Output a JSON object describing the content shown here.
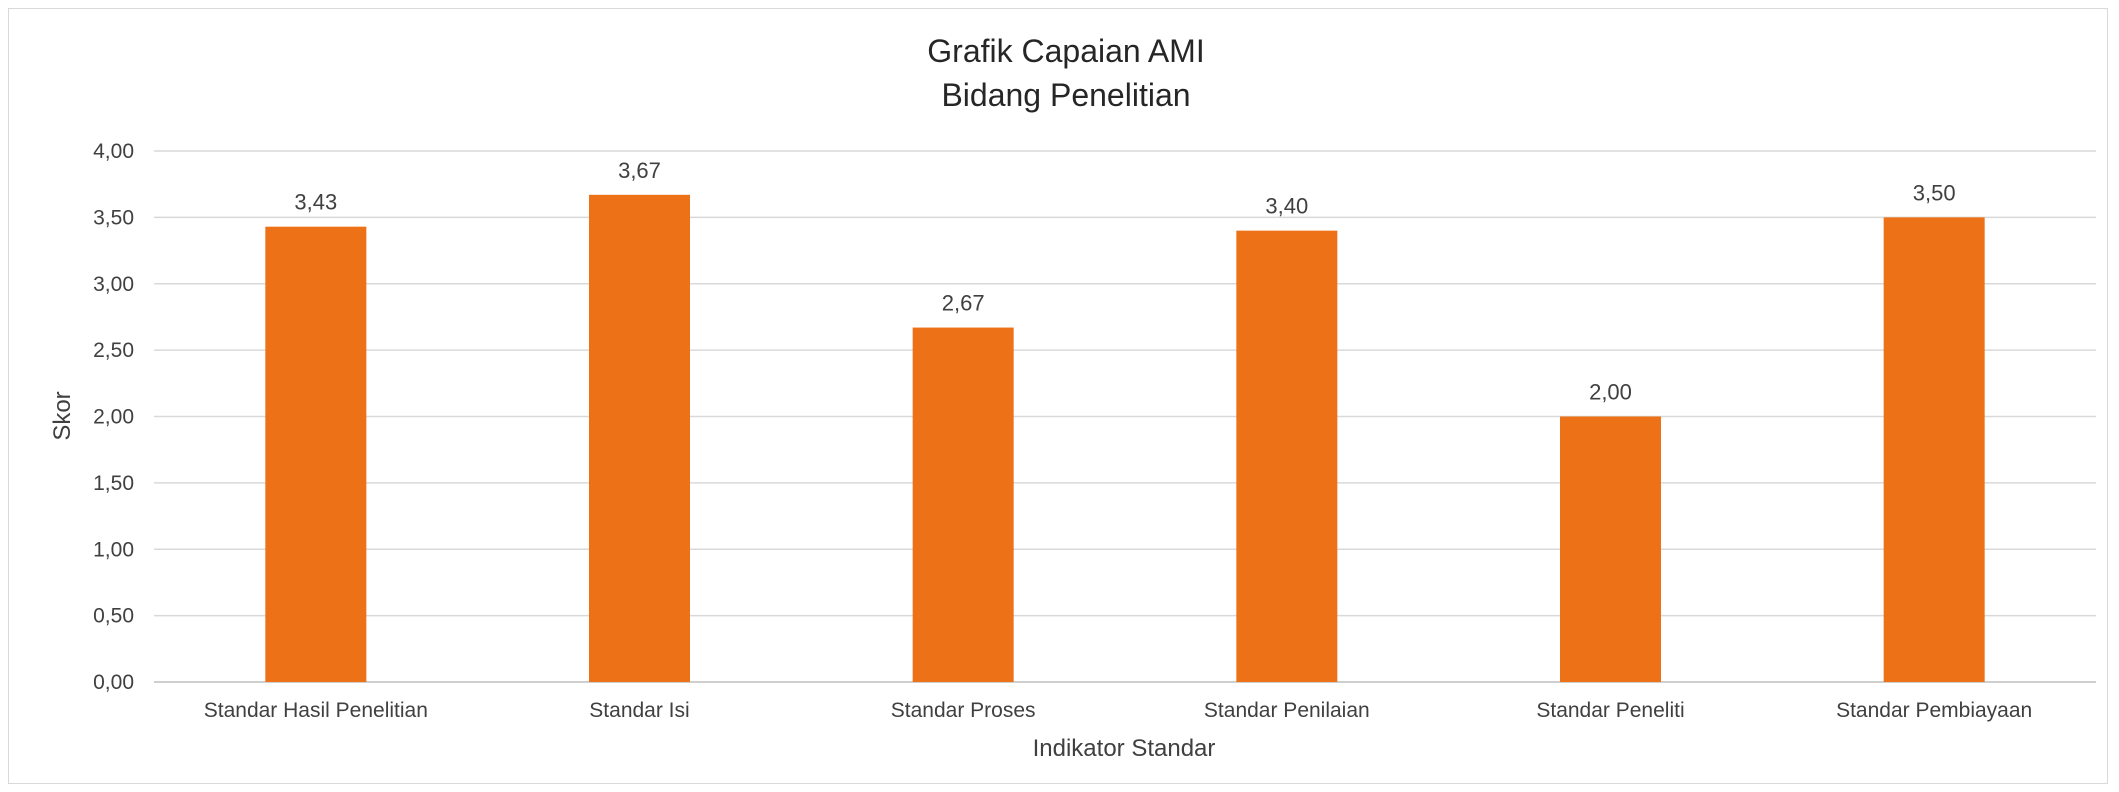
{
  "chart_data": {
    "type": "bar",
    "title": [
      "Grafik Capaian AMI",
      "Bidang Penelitian"
    ],
    "xlabel": "Indikator Standar",
    "ylabel": "Skor",
    "categories": [
      "Standar Hasil Penelitian",
      "Standar Isi",
      "Standar Proses",
      "Standar Penilaian",
      "Standar Peneliti",
      "Standar Pembiayaan"
    ],
    "values": [
      3.43,
      3.67,
      2.67,
      3.4,
      2.0,
      3.5
    ],
    "data_labels": [
      "3,43",
      "3,67",
      "2,67",
      "3,40",
      "2,00",
      "3,50"
    ],
    "ylim": [
      0,
      4
    ],
    "yticks": [
      0,
      0.5,
      1,
      1.5,
      2,
      2.5,
      3,
      3.5,
      4
    ],
    "ytick_labels": [
      "0,00",
      "0,50",
      "1,00",
      "1,50",
      "2,00",
      "2,50",
      "3,00",
      "3,50",
      "4,00"
    ],
    "grid": true,
    "legend": "none",
    "colors": {
      "bar": "#ED7117",
      "grid": "#d9d9d9",
      "axis": "#bfbfbf"
    }
  }
}
